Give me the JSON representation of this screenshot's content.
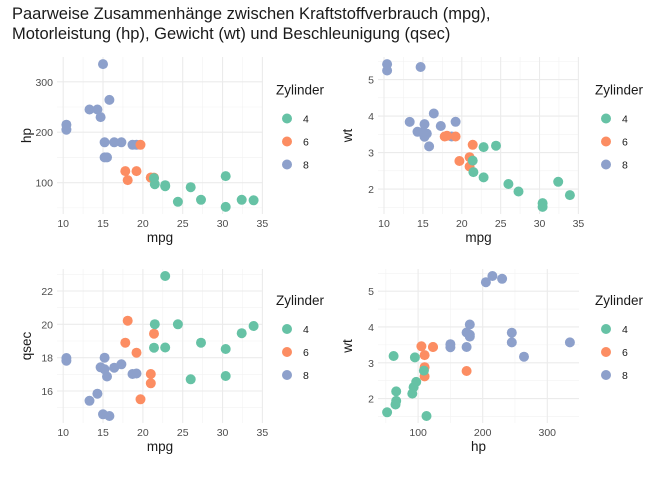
{
  "title": "Paarweise Zusammenhänge zwischen Kraftstoffverbrauch (mpg),\nMotorleistung (hp), Gewicht (wt) und Beschleunigung (qsec)",
  "colors": {
    "4": "#66c2a5",
    "6": "#fc8d62",
    "8": "#8da0cb"
  },
  "cars": [
    {
      "mpg": 21.0,
      "cyl": "6",
      "hp": 110,
      "wt": 2.62,
      "qsec": 16.46
    },
    {
      "mpg": 21.0,
      "cyl": "6",
      "hp": 110,
      "wt": 2.875,
      "qsec": 17.02
    },
    {
      "mpg": 22.8,
      "cyl": "4",
      "hp": 93,
      "wt": 2.32,
      "qsec": 18.61
    },
    {
      "mpg": 21.4,
      "cyl": "6",
      "hp": 110,
      "wt": 3.215,
      "qsec": 19.44
    },
    {
      "mpg": 18.7,
      "cyl": "8",
      "hp": 175,
      "wt": 3.44,
      "qsec": 17.02
    },
    {
      "mpg": 18.1,
      "cyl": "6",
      "hp": 105,
      "wt": 3.46,
      "qsec": 20.22
    },
    {
      "mpg": 14.3,
      "cyl": "8",
      "hp": 245,
      "wt": 3.57,
      "qsec": 15.84
    },
    {
      "mpg": 24.4,
      "cyl": "4",
      "hp": 62,
      "wt": 3.19,
      "qsec": 20.0
    },
    {
      "mpg": 22.8,
      "cyl": "4",
      "hp": 95,
      "wt": 3.15,
      "qsec": 22.9
    },
    {
      "mpg": 19.2,
      "cyl": "6",
      "hp": 123,
      "wt": 3.44,
      "qsec": 18.3
    },
    {
      "mpg": 17.8,
      "cyl": "6",
      "hp": 123,
      "wt": 3.44,
      "qsec": 18.9
    },
    {
      "mpg": 16.4,
      "cyl": "8",
      "hp": 180,
      "wt": 4.07,
      "qsec": 17.4
    },
    {
      "mpg": 17.3,
      "cyl": "8",
      "hp": 180,
      "wt": 3.73,
      "qsec": 17.6
    },
    {
      "mpg": 15.2,
      "cyl": "8",
      "hp": 180,
      "wt": 3.78,
      "qsec": 18.0
    },
    {
      "mpg": 10.4,
      "cyl": "8",
      "hp": 205,
      "wt": 5.25,
      "qsec": 17.98
    },
    {
      "mpg": 10.4,
      "cyl": "8",
      "hp": 215,
      "wt": 5.424,
      "qsec": 17.82
    },
    {
      "mpg": 14.7,
      "cyl": "8",
      "hp": 230,
      "wt": 5.345,
      "qsec": 17.42
    },
    {
      "mpg": 32.4,
      "cyl": "4",
      "hp": 66,
      "wt": 2.2,
      "qsec": 19.47
    },
    {
      "mpg": 30.4,
      "cyl": "4",
      "hp": 52,
      "wt": 1.615,
      "qsec": 18.52
    },
    {
      "mpg": 33.9,
      "cyl": "4",
      "hp": 65,
      "wt": 1.835,
      "qsec": 19.9
    },
    {
      "mpg": 21.5,
      "cyl": "4",
      "hp": 97,
      "wt": 2.465,
      "qsec": 20.01
    },
    {
      "mpg": 15.5,
      "cyl": "8",
      "hp": 150,
      "wt": 3.52,
      "qsec": 16.87
    },
    {
      "mpg": 15.2,
      "cyl": "8",
      "hp": 150,
      "wt": 3.435,
      "qsec": 17.3
    },
    {
      "mpg": 13.3,
      "cyl": "8",
      "hp": 245,
      "wt": 3.84,
      "qsec": 15.41
    },
    {
      "mpg": 19.2,
      "cyl": "8",
      "hp": 175,
      "wt": 3.845,
      "qsec": 17.05
    },
    {
      "mpg": 27.3,
      "cyl": "4",
      "hp": 66,
      "wt": 1.935,
      "qsec": 18.9
    },
    {
      "mpg": 26.0,
      "cyl": "4",
      "hp": 91,
      "wt": 2.14,
      "qsec": 16.7
    },
    {
      "mpg": 30.4,
      "cyl": "4",
      "hp": 113,
      "wt": 1.513,
      "qsec": 16.9
    },
    {
      "mpg": 15.8,
      "cyl": "8",
      "hp": 264,
      "wt": 3.17,
      "qsec": 14.5
    },
    {
      "mpg": 19.7,
      "cyl": "6",
      "hp": 175,
      "wt": 2.77,
      "qsec": 15.5
    },
    {
      "mpg": 15.0,
      "cyl": "8",
      "hp": 335,
      "wt": 3.57,
      "qsec": 14.6
    },
    {
      "mpg": 21.4,
      "cyl": "4",
      "hp": 109,
      "wt": 2.78,
      "qsec": 18.6
    }
  ],
  "chart_data": [
    {
      "type": "scatter",
      "x": "mpg",
      "y": "hp",
      "xlabel": "mpg",
      "ylabel": "hp",
      "xlim": [
        10.4,
        33.9
      ],
      "ylim": [
        52,
        335
      ],
      "xticks": [
        10,
        15,
        20,
        25,
        30,
        35
      ],
      "yticks": [
        100,
        200,
        300
      ],
      "legend_title": "Zylinder",
      "legend": [
        "4",
        "6",
        "8"
      ],
      "legend_position": "right",
      "grid": true
    },
    {
      "type": "scatter",
      "x": "mpg",
      "y": "wt",
      "xlabel": "mpg",
      "ylabel": "wt",
      "xlim": [
        10.4,
        33.9
      ],
      "ylim": [
        1.513,
        5.424
      ],
      "xticks": [
        10,
        15,
        20,
        25,
        30,
        35
      ],
      "yticks": [
        2,
        3,
        4,
        5
      ],
      "legend_title": "Zylinder",
      "legend": [
        "4",
        "6",
        "8"
      ],
      "legend_position": "right",
      "grid": true
    },
    {
      "type": "scatter",
      "x": "mpg",
      "y": "qsec",
      "xlabel": "mpg",
      "ylabel": "qsec",
      "xlim": [
        10.4,
        33.9
      ],
      "ylim": [
        14.5,
        22.9
      ],
      "xticks": [
        10,
        15,
        20,
        25,
        30,
        35
      ],
      "yticks": [
        16,
        18,
        20,
        22
      ],
      "legend_title": "Zylinder",
      "legend": [
        "4",
        "6",
        "8"
      ],
      "legend_position": "right",
      "grid": true
    },
    {
      "type": "scatter",
      "x": "hp",
      "y": "wt",
      "xlabel": "hp",
      "ylabel": "wt",
      "xlim": [
        52,
        335
      ],
      "ylim": [
        1.513,
        5.424
      ],
      "xticks": [
        100,
        200,
        300
      ],
      "yticks": [
        2,
        3,
        4,
        5
      ],
      "legend_title": "Zylinder",
      "legend": [
        "4",
        "6",
        "8"
      ],
      "legend_position": "right",
      "grid": true
    }
  ]
}
